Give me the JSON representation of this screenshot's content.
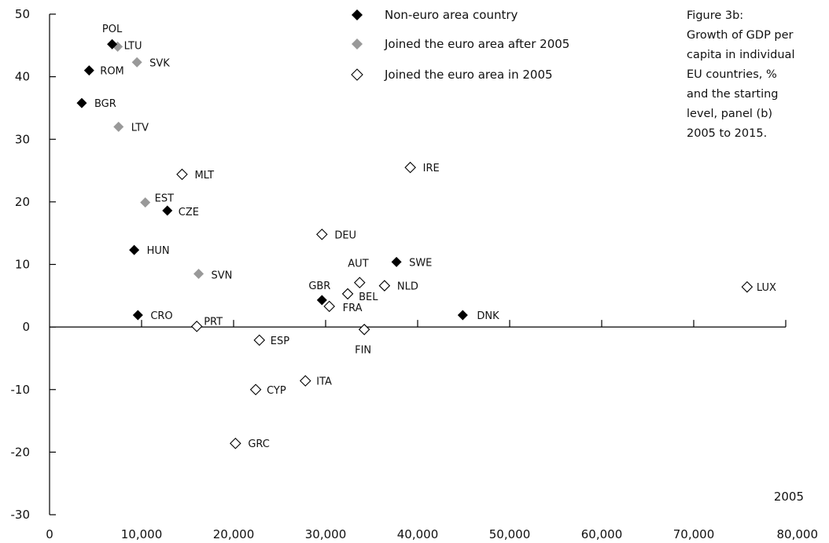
{
  "caption": {
    "lines": [
      "Figure 3b:",
      "Growth of GDP per",
      "capita in individual",
      "EU countries, %",
      "and the starting",
      "level, panel (b)",
      "2005 to 2015."
    ]
  },
  "colors": {
    "non_euro": "#000000",
    "joined_after_2005": "#999999",
    "joined_2005": "#ffffff"
  },
  "chart_data": {
    "type": "scatter",
    "title": "",
    "xlabel": "2005",
    "ylabel": "",
    "xlim": [
      0,
      80000
    ],
    "ylim": [
      -30,
      50
    ],
    "x_ticks": [
      0,
      10000,
      20000,
      30000,
      40000,
      50000,
      60000,
      70000,
      80000
    ],
    "x_tick_labels": [
      "0",
      "10,000",
      "20,000",
      "30,000",
      "40,000",
      "50,000",
      "60,000",
      "70,000",
      "80,000"
    ],
    "y_ticks": [
      -30,
      -20,
      -10,
      0,
      10,
      20,
      30,
      40,
      50
    ],
    "y_tick_labels": [
      "-30",
      "-20",
      "-10",
      "0",
      "10",
      "20",
      "30",
      "40",
      "50"
    ],
    "grid": false,
    "legend_position": "top-center",
    "series": [
      {
        "name": "Non-euro area country",
        "key": "non_euro",
        "points": [
          {
            "label": "POL",
            "x": 6800,
            "y": 45.2
          },
          {
            "label": "ROM",
            "x": 4300,
            "y": 41.0
          },
          {
            "label": "BGR",
            "x": 3500,
            "y": 35.8
          },
          {
            "label": "CZE",
            "x": 12800,
            "y": 18.6
          },
          {
            "label": "HUN",
            "x": 9200,
            "y": 12.3
          },
          {
            "label": "CRO",
            "x": 9600,
            "y": 1.9
          },
          {
            "label": "GBR",
            "x": 29600,
            "y": 4.3
          },
          {
            "label": "SWE",
            "x": 37700,
            "y": 10.4
          },
          {
            "label": "DNK",
            "x": 44900,
            "y": 1.9
          }
        ]
      },
      {
        "name": "Joined the euro area after 2005",
        "key": "joined_after_2005",
        "points": [
          {
            "label": "LTU",
            "x": 7400,
            "y": 44.8
          },
          {
            "label": "SVK",
            "x": 9500,
            "y": 42.3
          },
          {
            "label": "LTV",
            "x": 7500,
            "y": 32.0
          },
          {
            "label": "EST",
            "x": 10400,
            "y": 19.9
          },
          {
            "label": "SVN",
            "x": 16200,
            "y": 8.5
          }
        ]
      },
      {
        "name": "Joined the euro area in 2005",
        "key": "joined_2005",
        "points": [
          {
            "label": "MLT",
            "x": 14400,
            "y": 24.4
          },
          {
            "label": "IRE",
            "x": 39200,
            "y": 25.5
          },
          {
            "label": "DEU",
            "x": 29600,
            "y": 14.8
          },
          {
            "label": "AUT",
            "x": 33700,
            "y": 7.1
          },
          {
            "label": "NLD",
            "x": 36400,
            "y": 6.6
          },
          {
            "label": "BEL",
            "x": 32400,
            "y": 5.3
          },
          {
            "label": "FRA",
            "x": 30400,
            "y": 3.3
          },
          {
            "label": "FIN",
            "x": 34200,
            "y": -0.4
          },
          {
            "label": "PRT",
            "x": 16000,
            "y": 0.1
          },
          {
            "label": "ESP",
            "x": 22800,
            "y": -2.1
          },
          {
            "label": "ITA",
            "x": 27800,
            "y": -8.6
          },
          {
            "label": "CYP",
            "x": 22400,
            "y": -10.0
          },
          {
            "label": "GRC",
            "x": 20200,
            "y": -18.6
          },
          {
            "label": "LUX",
            "x": 75800,
            "y": 6.4
          }
        ]
      }
    ]
  }
}
